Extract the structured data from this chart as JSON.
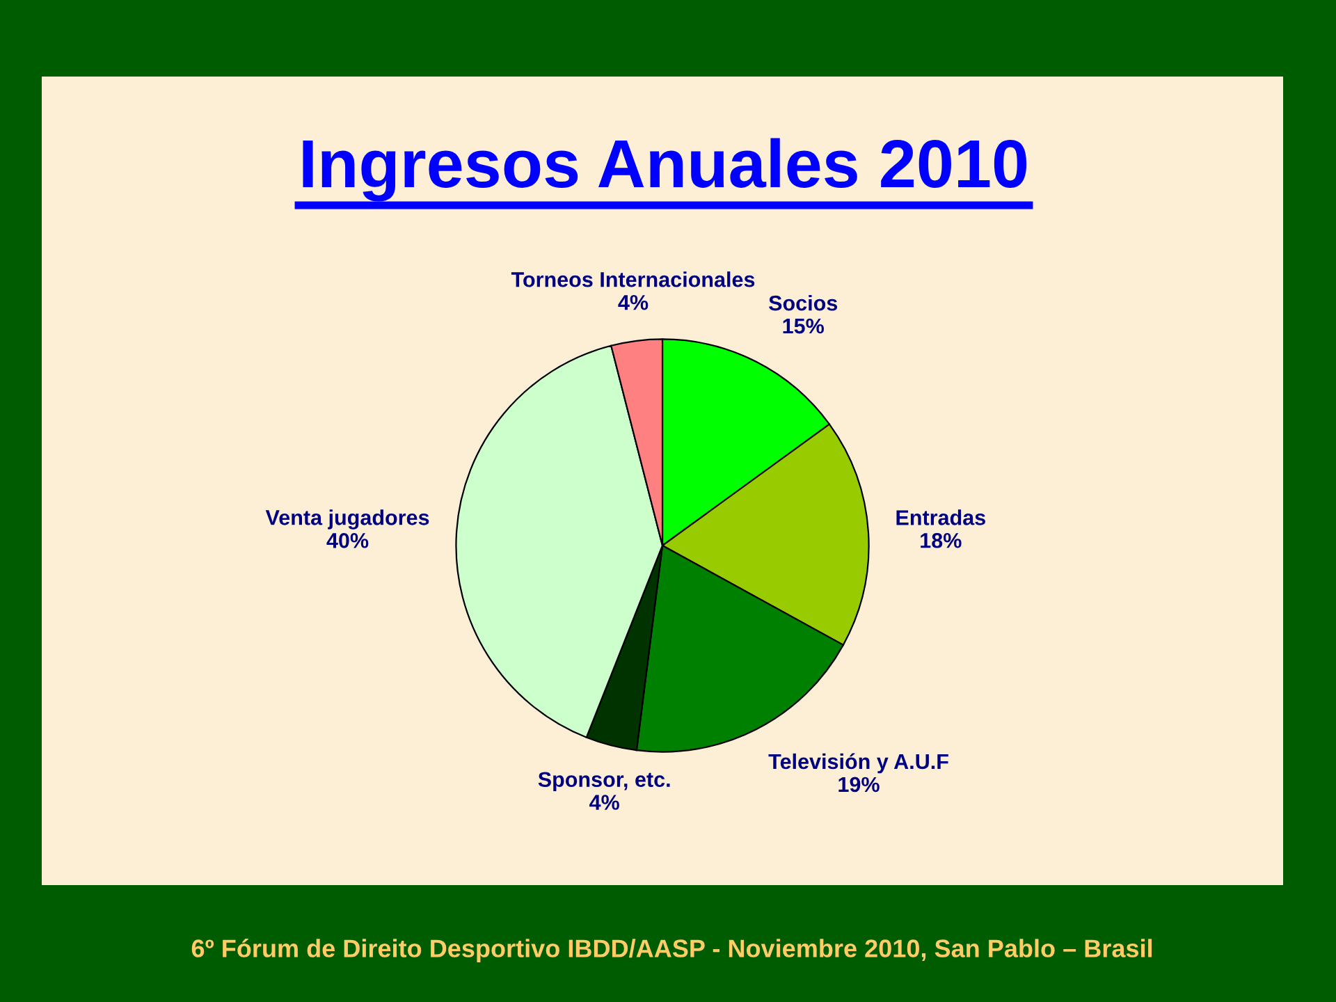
{
  "chart_data": {
    "type": "pie",
    "title": "Ingresos Anuales 2010",
    "categories": [
      "Socios",
      "Entradas",
      "Televisión y A.U.F",
      "Sponsor, etc.",
      "Venta jugadores",
      "Torneos Internacionales"
    ],
    "values": [
      15,
      18,
      19,
      4,
      40,
      4
    ],
    "value_labels": [
      "15%",
      "18%",
      "19%",
      "4%",
      "40%",
      "4%"
    ],
    "colors": [
      "#00ff00",
      "#99cc00",
      "#008000",
      "#003300",
      "#ccffcc",
      "#ff8080"
    ],
    "annotations": [
      "6º Fórum de Direito Desportivo IBDD/AASP - Noviembre 2010, San Pablo – Brasil"
    ]
  }
}
